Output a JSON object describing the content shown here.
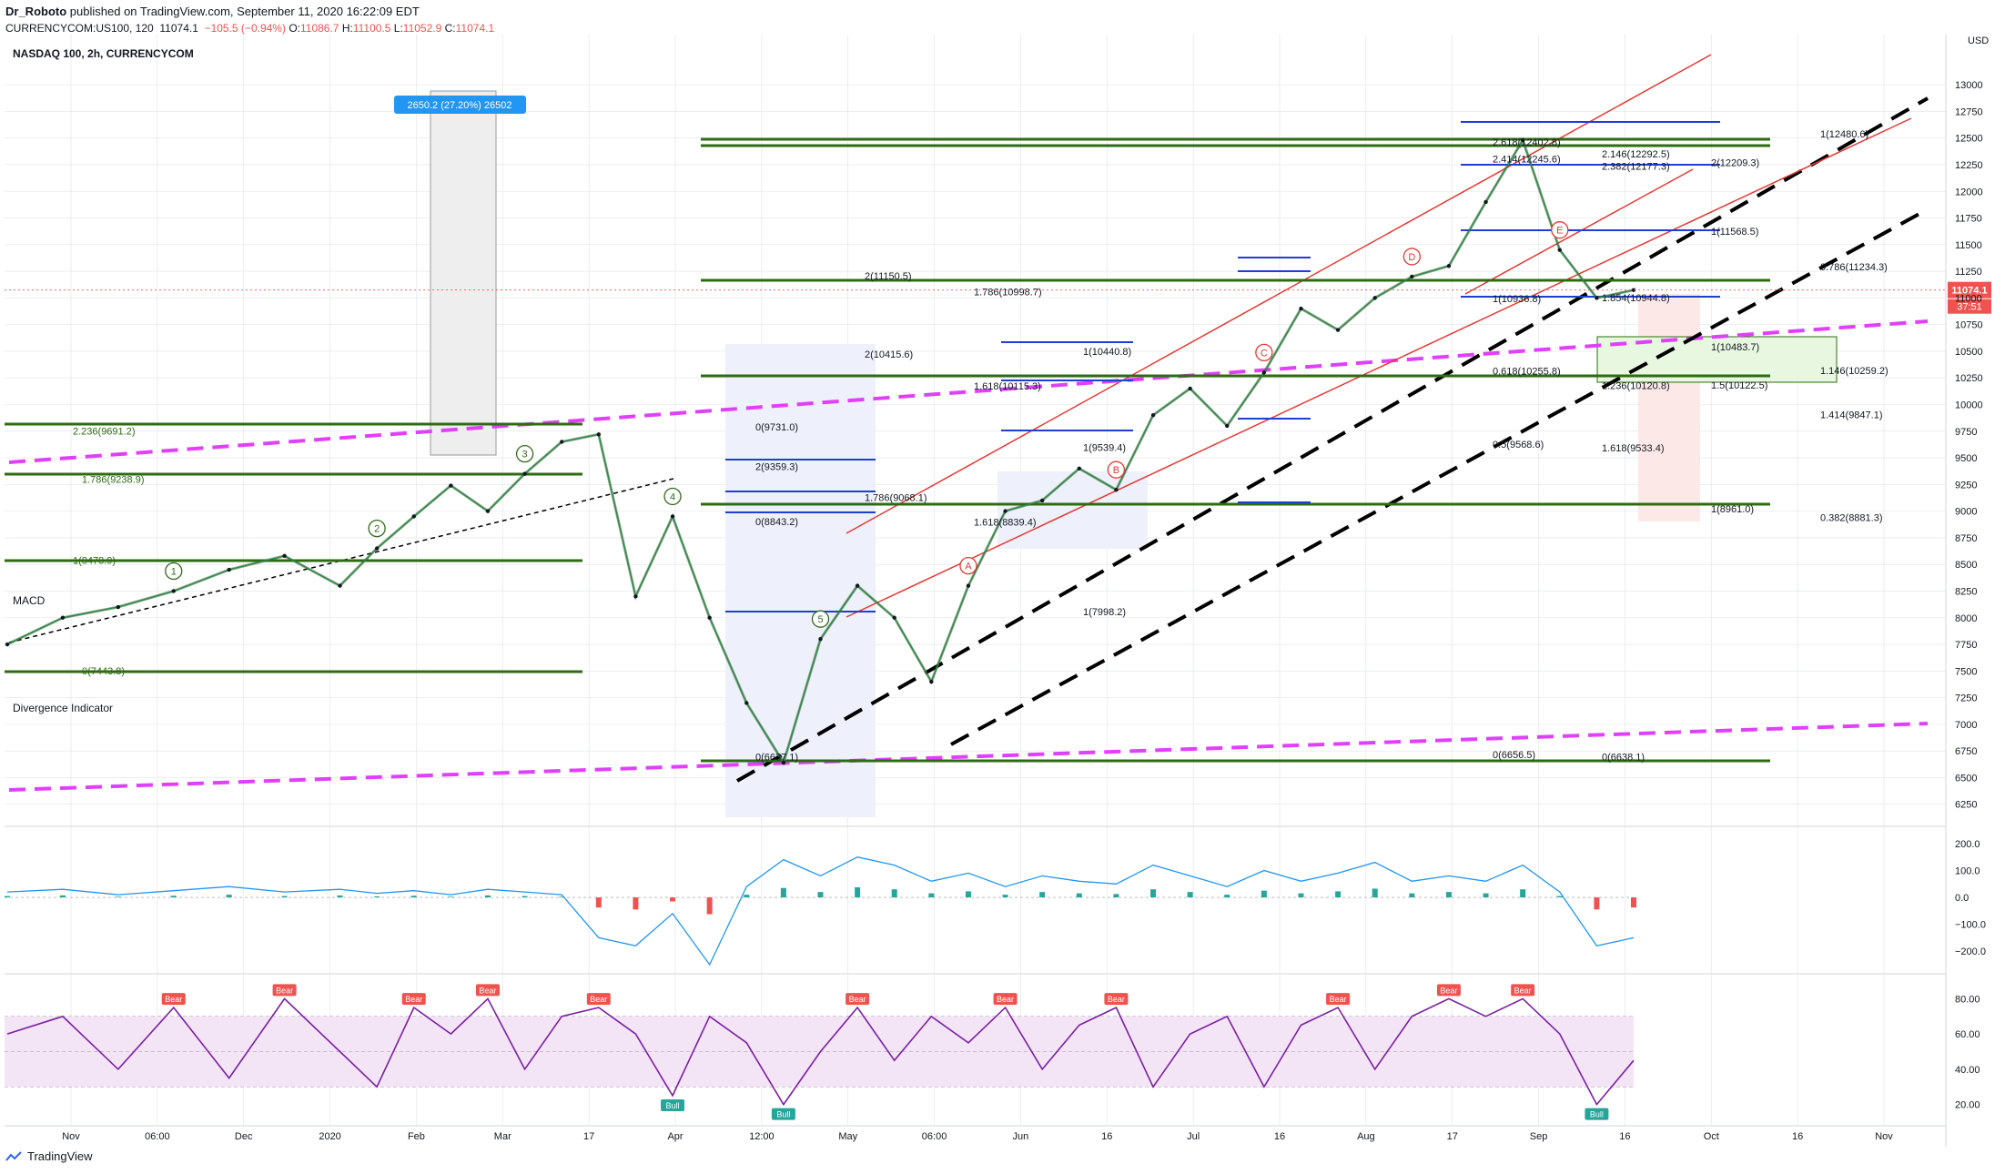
{
  "header": {
    "author": "Dr_Roboto",
    "published": "published on TradingView.com, September 11, 2020 16:22:09 EDT",
    "symbol": "CURRENCYCOM:US100, 120",
    "last": "11074.1",
    "change": "−105.5 (−0.94%)",
    "o_label": "O:",
    "o": "11086.7",
    "h_label": "H:",
    "h": "11100.5",
    "l_label": "L:",
    "l": "11052.9",
    "c_label": "C:",
    "c": "11074.1"
  },
  "footer": {
    "brand": "TradingView"
  },
  "colors": {
    "grid": "#e0e3eb",
    "wave_red": "#e53935",
    "wave_blue": "#1e3fd0",
    "wave_green": "#33691e",
    "fib_green": "#2e6b12",
    "magenta": "#e040fb",
    "black": "#000000",
    "macd_line": "#2196f3",
    "rsi": "#7b1fa2",
    "bull": "#26a69a",
    "bear": "#ef5350",
    "price_label": "#ef5350"
  },
  "chart_data": [
    {
      "type": "line",
      "title": "NASDAQ 100, 2h, CURRENCYCOM",
      "currency": "USD",
      "ylim": [
        6000,
        13300
      ],
      "y_ticks": [
        6250,
        6500,
        6750,
        7000,
        7250,
        7500,
        7750,
        8000,
        8250,
        8500,
        8750,
        9000,
        9250,
        9500,
        9750,
        10000,
        10250,
        10500,
        10750,
        11000,
        11250,
        11500,
        11750,
        12000,
        12250,
        12500,
        12750,
        13000
      ],
      "x_ticks": [
        "Nov",
        "06:00",
        "Dec",
        "2020",
        "Feb",
        "Mar",
        "17",
        "Apr",
        "12:00",
        "May",
        "06:00",
        "Jun",
        "16",
        "Jul",
        "16",
        "Aug",
        "17",
        "Sep",
        "16",
        "Oct",
        "16",
        "Nov"
      ],
      "last_price": "11074.1",
      "countdown": "37:51",
      "x": [
        0,
        3,
        6,
        9,
        12,
        15,
        18,
        20,
        22,
        24,
        26,
        28,
        30,
        32,
        34,
        36,
        38,
        40,
        42,
        44,
        46,
        48,
        50,
        52,
        54,
        56,
        58,
        60,
        62,
        64,
        66,
        68,
        70,
        72,
        74,
        76,
        78,
        80,
        82,
        84,
        86,
        88
      ],
      "series": [
        {
          "values": [
            7750,
            8000,
            8100,
            8250,
            8450,
            8580,
            8300,
            8650,
            8950,
            9240,
            9000,
            9350,
            9650,
            9720,
            8200,
            8950,
            8000,
            7200,
            6640,
            7800,
            8300,
            8000,
            7400,
            8300,
            9000,
            9100,
            9400,
            9200,
            9900,
            10150,
            9800,
            10300,
            10900,
            10700,
            11000,
            11200,
            11300,
            11900,
            12480,
            11450,
            11000,
            11074
          ]
        }
      ],
      "annotation": "2650.2 (27.20%) 26502",
      "fib_labels": [
        "2.236(9691.2)",
        "1.786(9238.9)",
        "1(8478.9)",
        "0(7443.8)",
        "2(9359.3)",
        "1.786(9068.1)",
        "1.618(8839.4)",
        "1(7998.2)",
        "0(6637.1)",
        "2(10415.6)",
        "1.618(10115.3)",
        "1(9539.4)",
        "0(8843.2)",
        "2(11150.5)",
        "1.786(10998.7)",
        "1(10440.8)",
        "0(9731.0)",
        "2.618(12402.8)",
        "2.146(12292.5)",
        "2(12209.3)",
        "1(12480.6)",
        "2.414(12245.6)",
        "2.382(12177.3)",
        "1(11568.5)",
        "0.786(11234.3)",
        "1(10936.8)",
        "1.854(10944.8)",
        "1(10483.7)",
        "1.146(10259.2)",
        "0.618(10255.8)",
        "1.236(10120.8)",
        "1.5(10122.5)",
        "1.414(9847.1)",
        "0.5(9568.6)",
        "1.618(9533.4)",
        "1(8961.0)",
        "0.382(8881.3)",
        "0(6656.5)",
        "0(6638.1)"
      ],
      "wave_labels": [
        "1",
        "2",
        "3",
        "4",
        "5",
        "A",
        "B",
        "C",
        "D",
        "E"
      ]
    },
    {
      "type": "line",
      "title": "MACD",
      "y_ticks": [
        "200.0",
        "100.0",
        "0.0",
        "−100.0",
        "−200.0"
      ],
      "ylim": [
        -260,
        230
      ],
      "series": [
        {
          "values": [
            20,
            30,
            10,
            25,
            40,
            20,
            30,
            15,
            25,
            10,
            30,
            20,
            10,
            -150,
            -180,
            -60,
            -250,
            40,
            140,
            80,
            150,
            120,
            60,
            90,
            40,
            80,
            60,
            50,
            120,
            80,
            40,
            100,
            60,
            90,
            130,
            60,
            80,
            60,
            120,
            20,
            -180,
            -150
          ]
        }
      ]
    },
    {
      "type": "line",
      "title": "Divergence Indicator",
      "y_ticks": [
        "80.00",
        "60.00",
        "40.00",
        "20.00"
      ],
      "ylim": [
        10,
        90
      ],
      "band": [
        30,
        70
      ],
      "series": [
        {
          "values": [
            60,
            70,
            40,
            75,
            35,
            80,
            50,
            30,
            75,
            60,
            80,
            40,
            70,
            75,
            60,
            25,
            70,
            55,
            20,
            50,
            75,
            45,
            70,
            55,
            75,
            40,
            65,
            75,
            30,
            60,
            70,
            30,
            65,
            75,
            40,
            70,
            80,
            70,
            80,
            60,
            20,
            45
          ]
        }
      ],
      "signals": [
        "Bear",
        "Bull"
      ]
    }
  ]
}
